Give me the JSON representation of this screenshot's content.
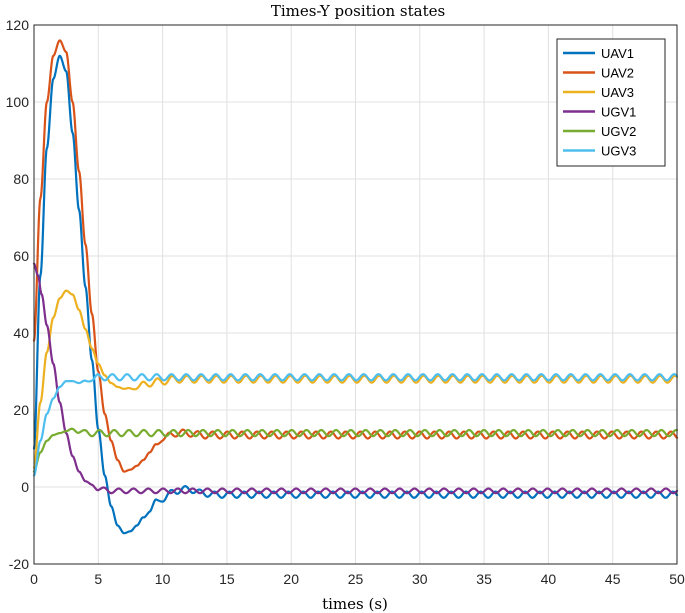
{
  "chart_data": {
    "type": "line",
    "title": "Times-Y position states",
    "xlabel": "times (s)",
    "ylabel": "",
    "xlim": [
      0,
      50
    ],
    "ylim": [
      -20,
      120
    ],
    "xticks": [
      0,
      5,
      10,
      15,
      20,
      25,
      30,
      35,
      40,
      45,
      50
    ],
    "yticks": [
      -20,
      0,
      20,
      40,
      60,
      80,
      100,
      120
    ],
    "grid": true,
    "legend_position": "top-right",
    "series": [
      {
        "name": "UAV1",
        "color": "#0072BD",
        "base": [
          [
            0,
            10
          ],
          [
            0.5,
            55
          ],
          [
            1,
            88
          ],
          [
            1.5,
            106
          ],
          [
            2,
            112
          ],
          [
            2.5,
            108
          ],
          [
            3,
            92
          ],
          [
            3.5,
            72
          ],
          [
            4,
            52
          ],
          [
            4.5,
            33
          ],
          [
            5,
            15
          ],
          [
            5.5,
            3
          ],
          [
            6,
            -5
          ],
          [
            6.5,
            -10
          ],
          [
            7,
            -12
          ],
          [
            7.5,
            -11.5
          ],
          [
            8,
            -10
          ],
          [
            8.5,
            -8
          ],
          [
            9,
            -6
          ],
          [
            9.5,
            -4
          ],
          [
            10,
            -3
          ],
          [
            11,
            -1
          ],
          [
            12,
            -0.5
          ],
          [
            13,
            -1.5
          ],
          [
            14,
            -2
          ],
          [
            50,
            -2
          ]
        ],
        "osc_start": 8,
        "osc_amp": 0.8,
        "osc_period": 1.15
      },
      {
        "name": "UAV2",
        "color": "#D95319",
        "base": [
          [
            0,
            38
          ],
          [
            0.5,
            75
          ],
          [
            1,
            100
          ],
          [
            1.5,
            112
          ],
          [
            2,
            116
          ],
          [
            2.5,
            113
          ],
          [
            3,
            100
          ],
          [
            3.5,
            82
          ],
          [
            4,
            63
          ],
          [
            4.5,
            45
          ],
          [
            5,
            30
          ],
          [
            5.5,
            19
          ],
          [
            6,
            12
          ],
          [
            6.5,
            7
          ],
          [
            7,
            4
          ],
          [
            7.5,
            4.5
          ],
          [
            8,
            5.5
          ],
          [
            8.5,
            7
          ],
          [
            9,
            9
          ],
          [
            9.5,
            11
          ],
          [
            10,
            12.5
          ],
          [
            11,
            14
          ],
          [
            12,
            14
          ],
          [
            13,
            13.5
          ],
          [
            50,
            13.5
          ]
        ],
        "osc_start": 9,
        "osc_amp": 0.9,
        "osc_period": 1.15
      },
      {
        "name": "UAV3",
        "color": "#EDB120",
        "base": [
          [
            0,
            5
          ],
          [
            0.5,
            22
          ],
          [
            1,
            35
          ],
          [
            1.5,
            44
          ],
          [
            2,
            49
          ],
          [
            2.5,
            51
          ],
          [
            3,
            50
          ],
          [
            3.5,
            46
          ],
          [
            4,
            41
          ],
          [
            4.5,
            36
          ],
          [
            5,
            32
          ],
          [
            5.5,
            29
          ],
          [
            6,
            27
          ],
          [
            6.5,
            26
          ],
          [
            7,
            25.5
          ],
          [
            7.5,
            25.5
          ],
          [
            8,
            26
          ],
          [
            9,
            27
          ],
          [
            10,
            27.5
          ],
          [
            11,
            28
          ],
          [
            50,
            28
          ]
        ],
        "osc_start": 7,
        "osc_amp": 0.9,
        "osc_period": 1.15
      },
      {
        "name": "UGV1",
        "color": "#7E2F8E",
        "base": [
          [
            0,
            58
          ],
          [
            0.3,
            55
          ],
          [
            0.6,
            50
          ],
          [
            1,
            42
          ],
          [
            1.5,
            32
          ],
          [
            2,
            22
          ],
          [
            2.5,
            14
          ],
          [
            3,
            8
          ],
          [
            3.5,
            4
          ],
          [
            4,
            1.5
          ],
          [
            4.5,
            0.5
          ],
          [
            5,
            -0.5
          ],
          [
            6,
            -1
          ],
          [
            50,
            -1
          ]
        ],
        "osc_start": 4,
        "osc_amp": 0.6,
        "osc_period": 1.15
      },
      {
        "name": "UGV2",
        "color": "#77AC30",
        "base": [
          [
            0,
            4
          ],
          [
            0.5,
            9
          ],
          [
            1,
            12
          ],
          [
            1.5,
            13.5
          ],
          [
            2,
            14
          ],
          [
            2.5,
            14.5
          ],
          [
            3,
            15
          ],
          [
            3.5,
            14.5
          ],
          [
            4,
            14
          ],
          [
            50,
            14
          ]
        ],
        "osc_start": 2.5,
        "osc_amp": 0.8,
        "osc_period": 1.15
      },
      {
        "name": "UGV3",
        "color": "#4DBEEE",
        "base": [
          [
            0,
            3
          ],
          [
            0.5,
            12
          ],
          [
            1,
            19
          ],
          [
            1.5,
            23
          ],
          [
            2,
            26
          ],
          [
            2.5,
            27.5
          ],
          [
            3,
            27.5
          ],
          [
            3.5,
            27
          ],
          [
            4,
            27.5
          ],
          [
            4.5,
            28
          ],
          [
            5,
            28.5
          ],
          [
            50,
            28.5
          ]
        ],
        "osc_start": 3.5,
        "osc_amp": 0.8,
        "osc_period": 1.15
      }
    ]
  }
}
